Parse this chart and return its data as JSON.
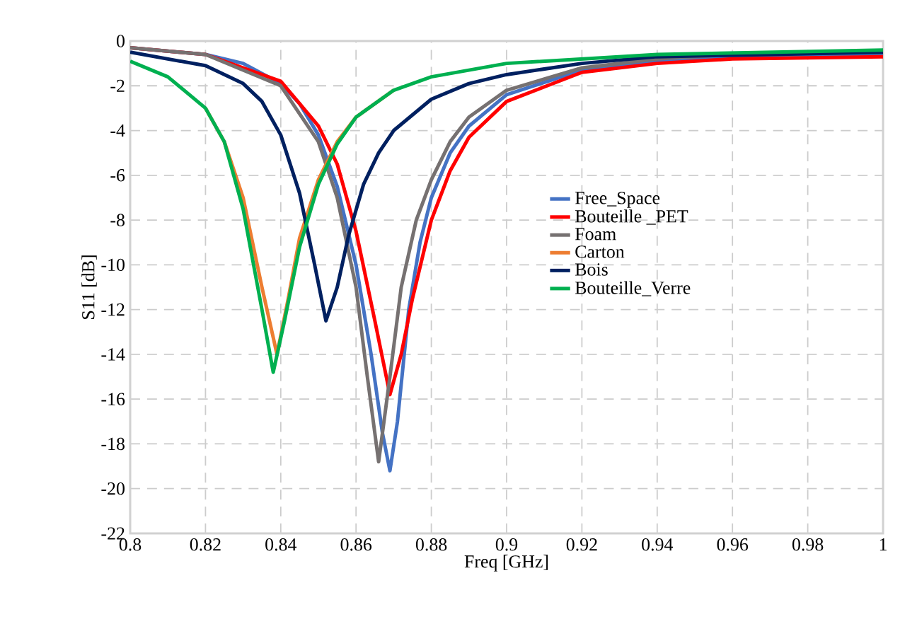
{
  "chart_data": {
    "type": "line",
    "xlabel": "Freq [GHz]",
    "ylabel": "S11 [dB]",
    "xlim": [
      0.8,
      1
    ],
    "ylim": [
      -22,
      0
    ],
    "xticks": [
      0.8,
      0.82,
      0.84,
      0.86,
      0.88,
      0.9,
      0.92,
      0.94,
      0.96,
      0.98,
      1
    ],
    "yticks": [
      -22,
      -20,
      -18,
      -16,
      -14,
      -12,
      -10,
      -8,
      -6,
      -4,
      -2,
      0
    ],
    "grid": true,
    "legend": "right",
    "marker": "none",
    "line_style": "solid",
    "series": [
      {
        "name": "Free_Space",
        "color": "#4472c4",
        "x": [
          0.8,
          0.82,
          0.83,
          0.84,
          0.845,
          0.85,
          0.855,
          0.86,
          0.864,
          0.867,
          0.869,
          0.871,
          0.874,
          0.877,
          0.88,
          0.885,
          0.89,
          0.9,
          0.92,
          0.94,
          0.96,
          1
        ],
        "values": [
          -0.3,
          -0.6,
          -1.0,
          -1.9,
          -2.8,
          -4.2,
          -6.5,
          -10,
          -14,
          -17.5,
          -19.2,
          -17,
          -12,
          -9,
          -7,
          -5,
          -3.8,
          -2.4,
          -1.3,
          -0.9,
          -0.7,
          -0.6
        ]
      },
      {
        "name": "Bouteille _PET",
        "color": "#ff0000",
        "x": [
          0.8,
          0.82,
          0.84,
          0.85,
          0.855,
          0.86,
          0.865,
          0.869,
          0.872,
          0.875,
          0.88,
          0.885,
          0.89,
          0.9,
          0.92,
          0.94,
          0.96,
          1
        ],
        "values": [
          -0.3,
          -0.6,
          -1.8,
          -3.8,
          -5.5,
          -8.5,
          -12.5,
          -15.8,
          -14,
          -11.5,
          -8,
          -5.8,
          -4.3,
          -2.7,
          -1.4,
          -1.0,
          -0.8,
          -0.7
        ]
      },
      {
        "name": "Foam",
        "color": "#767171",
        "x": [
          0.8,
          0.82,
          0.84,
          0.85,
          0.855,
          0.86,
          0.863,
          0.866,
          0.869,
          0.872,
          0.876,
          0.88,
          0.885,
          0.89,
          0.9,
          0.92,
          0.94,
          0.96,
          1
        ],
        "values": [
          -0.3,
          -0.6,
          -2.0,
          -4.5,
          -7,
          -11,
          -15,
          -18.8,
          -15,
          -11,
          -8,
          -6.2,
          -4.5,
          -3.4,
          -2.2,
          -1.2,
          -0.8,
          -0.6,
          -0.5
        ]
      },
      {
        "name": "Carton",
        "color": "#ed7d31",
        "x": [
          0.82,
          0.825,
          0.83,
          0.835,
          0.839,
          0.842,
          0.845,
          0.85,
          0.855,
          0.86,
          0.87
        ],
        "values": [
          -3,
          -4.5,
          -7,
          -11,
          -14,
          -11.5,
          -8.8,
          -6.2,
          -4.5,
          -3.4,
          -2.2
        ]
      },
      {
        "name": "Bois",
        "color": "#002060",
        "x": [
          0.8,
          0.82,
          0.83,
          0.835,
          0.84,
          0.845,
          0.849,
          0.852,
          0.855,
          0.858,
          0.862,
          0.866,
          0.87,
          0.88,
          0.89,
          0.9,
          0.92,
          0.94,
          1
        ],
        "values": [
          -0.5,
          -1.1,
          -1.9,
          -2.7,
          -4.2,
          -6.8,
          -10,
          -12.5,
          -11,
          -8.7,
          -6.4,
          -5,
          -4,
          -2.6,
          -1.9,
          -1.5,
          -1.0,
          -0.7,
          -0.5
        ]
      },
      {
        "name": "Bouteille_Verre",
        "color": "#00b050",
        "x": [
          0.8,
          0.81,
          0.82,
          0.825,
          0.83,
          0.835,
          0.838,
          0.841,
          0.845,
          0.85,
          0.855,
          0.86,
          0.87,
          0.88,
          0.9,
          0.94,
          1
        ],
        "values": [
          -0.9,
          -1.6,
          -3,
          -4.5,
          -7.5,
          -12,
          -14.8,
          -12.5,
          -9.2,
          -6.4,
          -4.6,
          -3.4,
          -2.2,
          -1.6,
          -1.0,
          -0.6,
          -0.4
        ]
      }
    ]
  }
}
